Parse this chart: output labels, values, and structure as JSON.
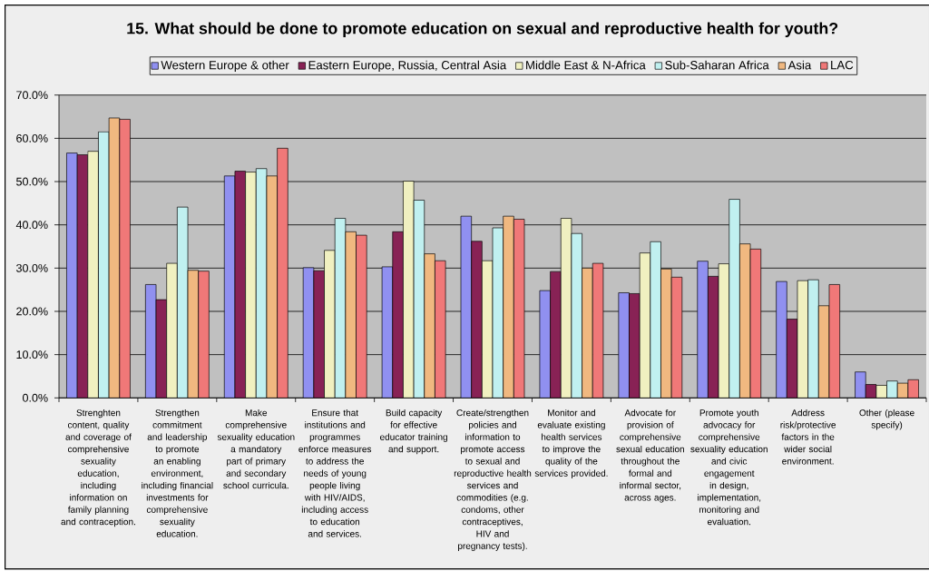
{
  "chart_data": {
    "type": "bar",
    "title": "15. What should be done to promote education on sexual and reproductive health for youth?",
    "categories": [
      "Strenghten content, quality and coverage of comprehensive sexuality education, including information on family planning and contraception.",
      "Strengthen commitment and leadership to promote an enabling environment, including financial investments for comprehensive sexuality education.",
      "Make comprehensive sexuality education a mandatory part of primary and secondary school curricula.",
      "Ensure that institutions and programmes enforce measures to address the needs of young people living with HIV/AIDS, including access to education and services.",
      "Build capacity for effective educator training and support.",
      "Create/strengthen policies and information to promote access to sexual and reproductive health services and commodities (e.g. condoms, other contraceptives, HIV and pregnancy tests).",
      "Monitor and evaluate existing health services to improve the quality of the services provided.",
      "Advocate for provision of comprehensive sexual education throughout the formal and informal sector, across ages.",
      "Promote youth advocacy for comprehensive sexuality education and civic engagement in design, implementation, monitoring and evaluation.",
      "Address risk/protective factors in the wider social environment.",
      "Other (please specify)"
    ],
    "series": [
      {
        "name": "Western Europe & other",
        "color": "#9090f0",
        "values": [
          56.6,
          26.2,
          51.3,
          30.1,
          30.3,
          42.0,
          24.8,
          24.3,
          31.6,
          26.9,
          6.0
        ]
      },
      {
        "name": "Eastern Europe, Russia, Central Asia",
        "color": "#882255",
        "values": [
          56.2,
          22.7,
          52.4,
          29.4,
          38.4,
          36.2,
          29.2,
          24.1,
          28.1,
          18.2,
          3.1
        ]
      },
      {
        "name": "Middle East & N-Africa",
        "color": "#f0f0c0",
        "values": [
          57.0,
          31.1,
          52.2,
          34.1,
          50.1,
          31.7,
          41.5,
          33.5,
          31.0,
          27.1,
          2.9
        ]
      },
      {
        "name": "Sub-Saharan Africa",
        "color": "#c0f0f0",
        "values": [
          61.5,
          44.1,
          53.0,
          41.5,
          45.7,
          39.3,
          38.0,
          36.1,
          45.9,
          27.3,
          3.9
        ]
      },
      {
        "name": "Asia",
        "color": "#f0b880",
        "values": [
          64.7,
          29.5,
          51.3,
          38.4,
          33.3,
          42.0,
          30.0,
          29.8,
          35.6,
          21.3,
          3.4
        ]
      },
      {
        "name": "LAC",
        "color": "#f07878",
        "values": [
          64.4,
          29.3,
          57.7,
          37.6,
          31.7,
          41.3,
          31.1,
          27.9,
          34.4,
          26.2,
          4.2
        ]
      }
    ],
    "ylim": [
      0,
      70
    ],
    "yticks": [
      {
        "value": 0,
        "label": "0.0%"
      },
      {
        "value": 10,
        "label": "10.0%"
      },
      {
        "value": 20,
        "label": "20.0%"
      },
      {
        "value": 30,
        "label": "30.0%"
      },
      {
        "value": 40,
        "label": "40.0%"
      },
      {
        "value": 50,
        "label": "50.0%"
      },
      {
        "value": 60,
        "label": "60.0%"
      },
      {
        "value": 70,
        "label": "70.0%"
      }
    ],
    "grid": "y",
    "legend": "top"
  }
}
